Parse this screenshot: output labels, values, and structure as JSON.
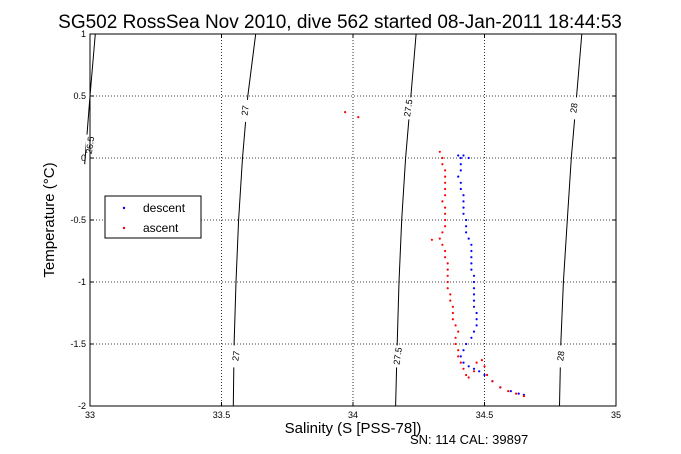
{
  "chart_data": {
    "type": "scatter",
    "title": "SG502 RossSea Nov 2010, dive 562 started 08-Jan-2011 18:44:53",
    "xlabel": "Salinity (S [PSS-78])",
    "ylabel": "Temperature (°C)",
    "xlim": [
      33,
      35
    ],
    "ylim": [
      -2,
      1
    ],
    "x_ticks": [
      "33",
      "33.5",
      "34",
      "34.5",
      "35"
    ],
    "y_ticks": [
      "-2",
      "-1.5",
      "-1",
      "-0.5",
      "0",
      "0.5",
      "1"
    ],
    "grid": true,
    "legend_position": "center-left",
    "footer": "SN: 114  CAL: 39897",
    "colors": {
      "descent": "#0000ff",
      "ascent": "#ff0000",
      "isopycnal": "#000000"
    },
    "isopycnals": [
      {
        "label": "26.5",
        "points": [
          [
            33.02,
            1.0
          ],
          [
            33.0,
            0.5
          ],
          [
            32.98,
            -0.05
          ]
        ],
        "label_at": [
          33.0,
          0.1
        ]
      },
      {
        "label": "27",
        "points": [
          [
            33.63,
            1.0
          ],
          [
            33.6,
            0.5
          ],
          [
            33.58,
            0.0
          ],
          [
            33.565,
            -0.5
          ],
          [
            33.555,
            -1.0
          ],
          [
            33.548,
            -1.5
          ],
          [
            33.545,
            -2.0
          ]
        ],
        "label_at": [
          33.59,
          0.38
        ],
        "label2": "27",
        "label2_at": [
          33.555,
          -1.6
        ]
      },
      {
        "label": "27.5",
        "points": [
          [
            34.24,
            1.0
          ],
          [
            34.22,
            0.5
          ],
          [
            34.2,
            0.0
          ],
          [
            34.185,
            -0.5
          ],
          [
            34.175,
            -1.0
          ],
          [
            34.168,
            -1.5
          ],
          [
            34.162,
            -2.0
          ]
        ],
        "label_at": [
          34.21,
          0.4
        ],
        "label2": "27.5",
        "label2_at": [
          34.17,
          -1.6
        ]
      },
      {
        "label": "28",
        "points": [
          [
            34.87,
            1.0
          ],
          [
            34.85,
            0.5
          ],
          [
            34.83,
            0.0
          ],
          [
            34.815,
            -0.5
          ],
          [
            34.8,
            -1.0
          ],
          [
            34.79,
            -1.5
          ],
          [
            34.785,
            -2.0
          ]
        ],
        "label_at": [
          34.84,
          0.4
        ],
        "label2": "28",
        "label2_at": [
          34.79,
          -1.6
        ]
      }
    ],
    "series": [
      {
        "name": "descent",
        "points": [
          [
            34.4,
            0.02
          ],
          [
            34.41,
            0.0
          ],
          [
            34.41,
            -0.05
          ],
          [
            34.41,
            -0.1
          ],
          [
            34.4,
            -0.15
          ],
          [
            34.41,
            -0.2
          ],
          [
            34.41,
            -0.25
          ],
          [
            34.42,
            -0.3
          ],
          [
            34.42,
            -0.35
          ],
          [
            34.42,
            -0.4
          ],
          [
            34.42,
            -0.45
          ],
          [
            34.43,
            -0.5
          ],
          [
            34.43,
            -0.55
          ],
          [
            34.43,
            -0.6
          ],
          [
            34.44,
            -0.65
          ],
          [
            34.45,
            -0.7
          ],
          [
            34.45,
            -0.75
          ],
          [
            34.45,
            -0.8
          ],
          [
            34.45,
            -0.85
          ],
          [
            34.45,
            -0.9
          ],
          [
            34.46,
            -0.95
          ],
          [
            34.46,
            -1.0
          ],
          [
            34.46,
            -1.05
          ],
          [
            34.46,
            -1.1
          ],
          [
            34.46,
            -1.15
          ],
          [
            34.46,
            -1.2
          ],
          [
            34.47,
            -1.25
          ],
          [
            34.47,
            -1.3
          ],
          [
            34.47,
            -1.35
          ],
          [
            34.46,
            -1.4
          ],
          [
            34.45,
            -1.45
          ],
          [
            34.43,
            -1.5
          ],
          [
            34.42,
            -1.55
          ],
          [
            34.41,
            -1.6
          ],
          [
            34.42,
            -1.65
          ],
          [
            34.44,
            -1.68
          ],
          [
            34.46,
            -1.7
          ],
          [
            34.48,
            -1.72
          ],
          [
            34.5,
            -1.75
          ],
          [
            34.53,
            -1.8
          ],
          [
            34.56,
            -1.85
          ],
          [
            34.6,
            -1.88
          ],
          [
            34.63,
            -1.9
          ],
          [
            34.65,
            -1.91
          ],
          [
            34.42,
            0.02
          ],
          [
            34.44,
            0.0
          ]
        ]
      },
      {
        "name": "ascent",
        "points": [
          [
            33.97,
            0.37
          ],
          [
            34.02,
            0.33
          ],
          [
            34.33,
            0.05
          ],
          [
            34.34,
            0.0
          ],
          [
            34.34,
            -0.05
          ],
          [
            34.35,
            -0.1
          ],
          [
            34.35,
            -0.15
          ],
          [
            34.35,
            -0.2
          ],
          [
            34.35,
            -0.25
          ],
          [
            34.35,
            -0.3
          ],
          [
            34.34,
            -0.35
          ],
          [
            34.35,
            -0.4
          ],
          [
            34.35,
            -0.45
          ],
          [
            34.35,
            -0.5
          ],
          [
            34.35,
            -0.55
          ],
          [
            34.34,
            -0.6
          ],
          [
            34.33,
            -0.65
          ],
          [
            34.3,
            -0.66
          ],
          [
            34.34,
            -0.7
          ],
          [
            34.35,
            -0.75
          ],
          [
            34.35,
            -0.8
          ],
          [
            34.36,
            -0.85
          ],
          [
            34.36,
            -0.9
          ],
          [
            34.36,
            -0.95
          ],
          [
            34.36,
            -1.0
          ],
          [
            34.36,
            -1.05
          ],
          [
            34.37,
            -1.1
          ],
          [
            34.37,
            -1.15
          ],
          [
            34.38,
            -1.2
          ],
          [
            34.38,
            -1.25
          ],
          [
            34.38,
            -1.3
          ],
          [
            34.39,
            -1.35
          ],
          [
            34.4,
            -1.4
          ],
          [
            34.39,
            -1.45
          ],
          [
            34.39,
            -1.5
          ],
          [
            34.4,
            -1.55
          ],
          [
            34.4,
            -1.6
          ],
          [
            34.41,
            -1.65
          ],
          [
            34.42,
            -1.7
          ],
          [
            34.43,
            -1.75
          ],
          [
            34.44,
            -1.77
          ],
          [
            34.46,
            -1.72
          ],
          [
            34.47,
            -1.65
          ],
          [
            34.49,
            -1.63
          ],
          [
            34.5,
            -1.68
          ],
          [
            34.51,
            -1.75
          ],
          [
            34.53,
            -1.8
          ],
          [
            34.56,
            -1.85
          ],
          [
            34.59,
            -1.88
          ],
          [
            34.62,
            -1.9
          ],
          [
            34.65,
            -1.92
          ]
        ]
      }
    ]
  }
}
